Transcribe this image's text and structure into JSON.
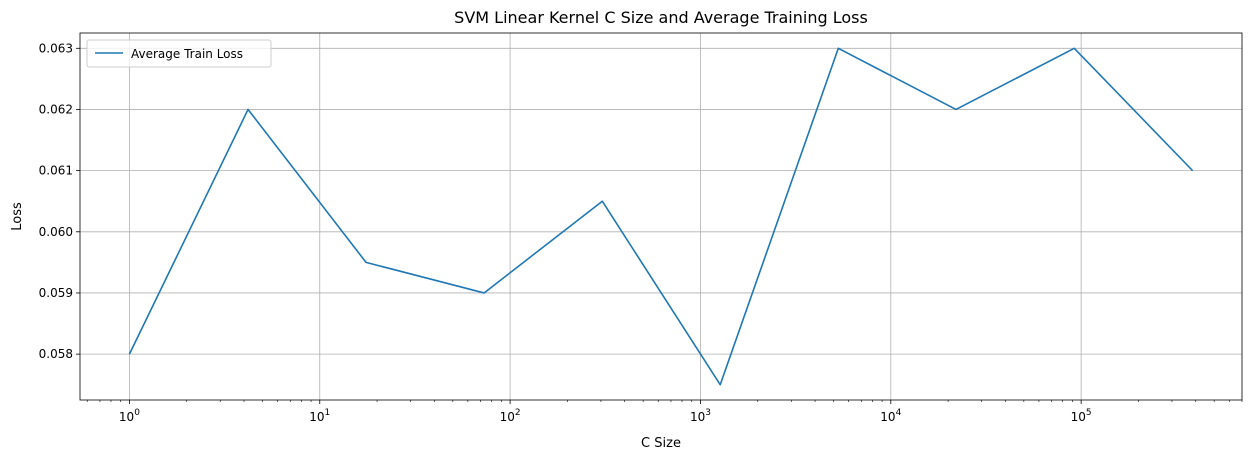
{
  "chart_data": {
    "type": "line",
    "title": "SVM Linear Kernel C Size and Average Training Loss",
    "xlabel": "C Size",
    "ylabel": "Loss",
    "xscale": "log",
    "xlim": [
      0.55,
      700000
    ],
    "ylim": [
      0.05725,
      0.06325
    ],
    "grid": true,
    "legend_position": "upper left",
    "x_ticks": [
      {
        "value": 1,
        "base": "10",
        "exp": "0"
      },
      {
        "value": 10,
        "base": "10",
        "exp": "1"
      },
      {
        "value": 100,
        "base": "10",
        "exp": "2"
      },
      {
        "value": 1000,
        "base": "10",
        "exp": "3"
      },
      {
        "value": 10000,
        "base": "10",
        "exp": "4"
      },
      {
        "value": 100000,
        "base": "10",
        "exp": "5"
      }
    ],
    "y_ticks": [
      {
        "value": 0.058,
        "label": "0.058"
      },
      {
        "value": 0.059,
        "label": "0.059"
      },
      {
        "value": 0.06,
        "label": "0.060"
      },
      {
        "value": 0.061,
        "label": "0.061"
      },
      {
        "value": 0.062,
        "label": "0.062"
      },
      {
        "value": 0.063,
        "label": "0.063"
      }
    ],
    "series": [
      {
        "name": "Average Train Loss",
        "color": "#1f77b4",
        "x": [
          1,
          4.2,
          17.5,
          73,
          305,
          1270,
          5300,
          22000,
          92000,
          385000
        ],
        "y": [
          0.058,
          0.062,
          0.0595,
          0.059,
          0.0605,
          0.0575,
          0.063,
          0.062,
          0.063,
          0.061
        ]
      }
    ]
  }
}
